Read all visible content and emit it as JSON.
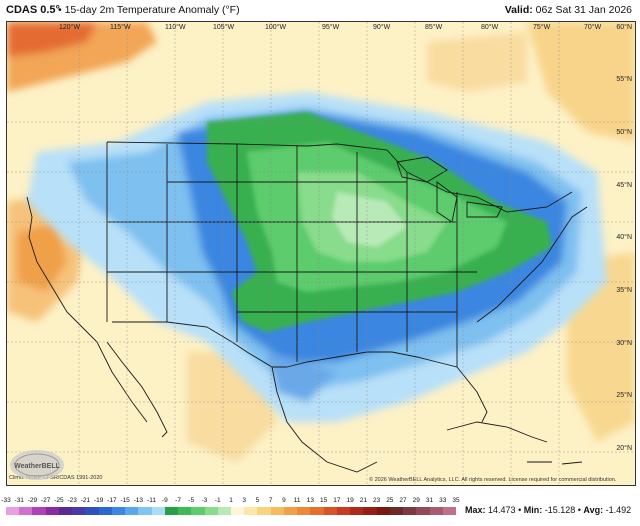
{
  "header": {
    "title": "CDAS 0.5°",
    "subtitle": "• 15-day 2m Temperature Anomaly (°F)",
    "valid_label": "Valid:",
    "valid_value": "06z Sat 31 Jan 2026"
  },
  "map": {
    "longitude_labels": [
      "120°W",
      "115°W",
      "110°W",
      "105°W",
      "100°W",
      "95°W",
      "90°W",
      "85°W",
      "80°W",
      "75°W",
      "70°W"
    ],
    "latitude_labels": [
      "60°N",
      "55°N",
      "50°N",
      "45°N",
      "40°N",
      "35°N",
      "30°N",
      "25°N",
      "20°N"
    ],
    "climo_credit": "Climo: NCEP CFSR/CDAS 1991-2020",
    "copyright": "© 2026 WeatherBELL Analytics, LLC. All rights reserved. License required for commercial distribution.",
    "logo_text": "WeatherBELL"
  },
  "legend": {
    "ticks": [
      "-33",
      "-31",
      "-29",
      "-27",
      "-25",
      "-23",
      "-21",
      "-19",
      "-17",
      "-15",
      "-13",
      "-11",
      "-9",
      "-7",
      "-5",
      "-3",
      "-1",
      "1",
      "3",
      "5",
      "7",
      "9",
      "11",
      "13",
      "15",
      "17",
      "19",
      "21",
      "23",
      "25",
      "27",
      "29",
      "31",
      "33",
      "35"
    ],
    "colors": [
      "#e8a0e0",
      "#d070d0",
      "#b040b8",
      "#8a2aa0",
      "#5a2a90",
      "#4a3aa8",
      "#3050c0",
      "#2a6ad0",
      "#3a86e0",
      "#58a6ec",
      "#80c4f4",
      "#aadcf8",
      "#28a048",
      "#40b858",
      "#5ccc6c",
      "#88dc8c",
      "#b8eab8",
      "#fdf6d8",
      "#fbe7a8",
      "#f8d480",
      "#f4bc5c",
      "#f0a048",
      "#ec8a3a",
      "#e4702e",
      "#d85428",
      "#c83a22",
      "#b02a1c",
      "#962018",
      "#7a1812",
      "#6a2a28",
      "#7a3a40",
      "#924a58",
      "#a85a70",
      "#c07088"
    ]
  },
  "stats": {
    "max_label": "Max:",
    "max_value": "14.473",
    "min_label": "Min:",
    "min_value": "-15.128",
    "avg_label": "Avg:",
    "avg_value": "-1.492"
  },
  "colors": {
    "background_warm": "#fdf1c6",
    "cold_anomaly": "#3a86e0",
    "coldest_anomaly": "#28a048",
    "warm_anomaly": "#f0a048"
  }
}
